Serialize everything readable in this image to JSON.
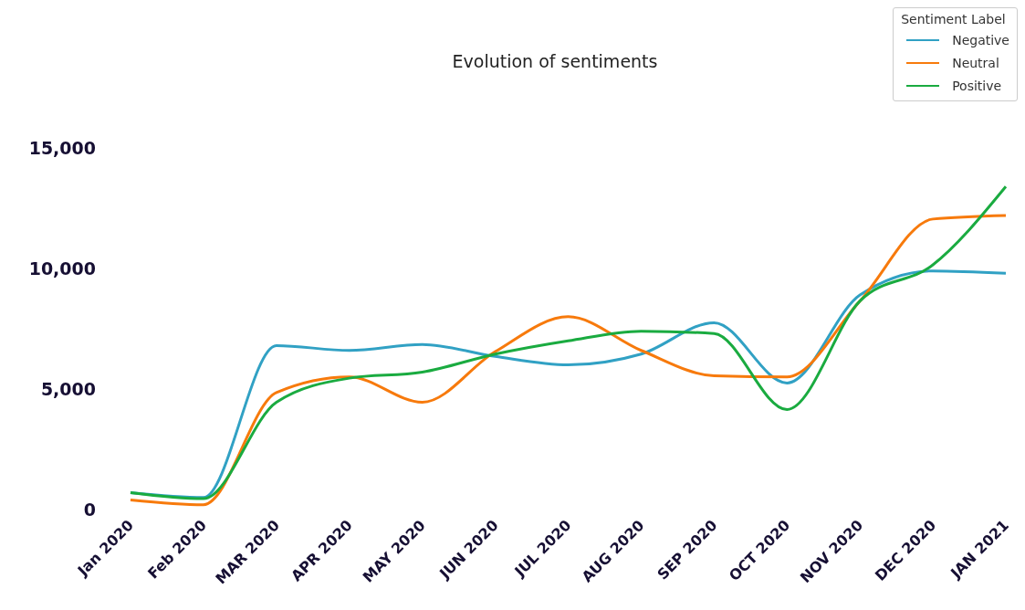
{
  "chart_data": {
    "type": "line",
    "title": "Evolution of sentiments",
    "legend_title": "Sentiment Label",
    "legend": "top right",
    "grid": false,
    "marker": "none",
    "categories": [
      "Jan 2020",
      "Feb 2020",
      "MAR 2020",
      "APR 2020",
      "MAY 2020",
      "JUN 2020",
      "JUL 2020",
      "AUG 2020",
      "SEP 2020",
      "OCT 2020",
      "NOV 2020",
      "DEC 2020",
      "JAN 2021"
    ],
    "ylim": [
      0,
      15000
    ],
    "yticks": [
      0,
      {
        "value": 5000,
        "label": "5,000"
      },
      {
        "value": 10000,
        "label": "10,000"
      },
      {
        "value": 15000,
        "label": "15,000"
      }
    ],
    "series": [
      {
        "name": "Negative",
        "color": "#31a1c4",
        "values": [
          700,
          500,
          6800,
          6600,
          6850,
          6350,
          6000,
          6450,
          7750,
          5250,
          8900,
          9900,
          9800
        ]
      },
      {
        "name": "Neutral",
        "color": "#f77a0c",
        "values": [
          400,
          200,
          4850,
          5500,
          4450,
          6550,
          8000,
          6600,
          5550,
          5500,
          8650,
          12050,
          12200
        ]
      },
      {
        "name": "Positive",
        "color": "#1aab40",
        "values": [
          700,
          450,
          4450,
          5450,
          5700,
          6450,
          7000,
          7400,
          7300,
          4150,
          8650,
          10150,
          13400
        ]
      }
    ]
  }
}
